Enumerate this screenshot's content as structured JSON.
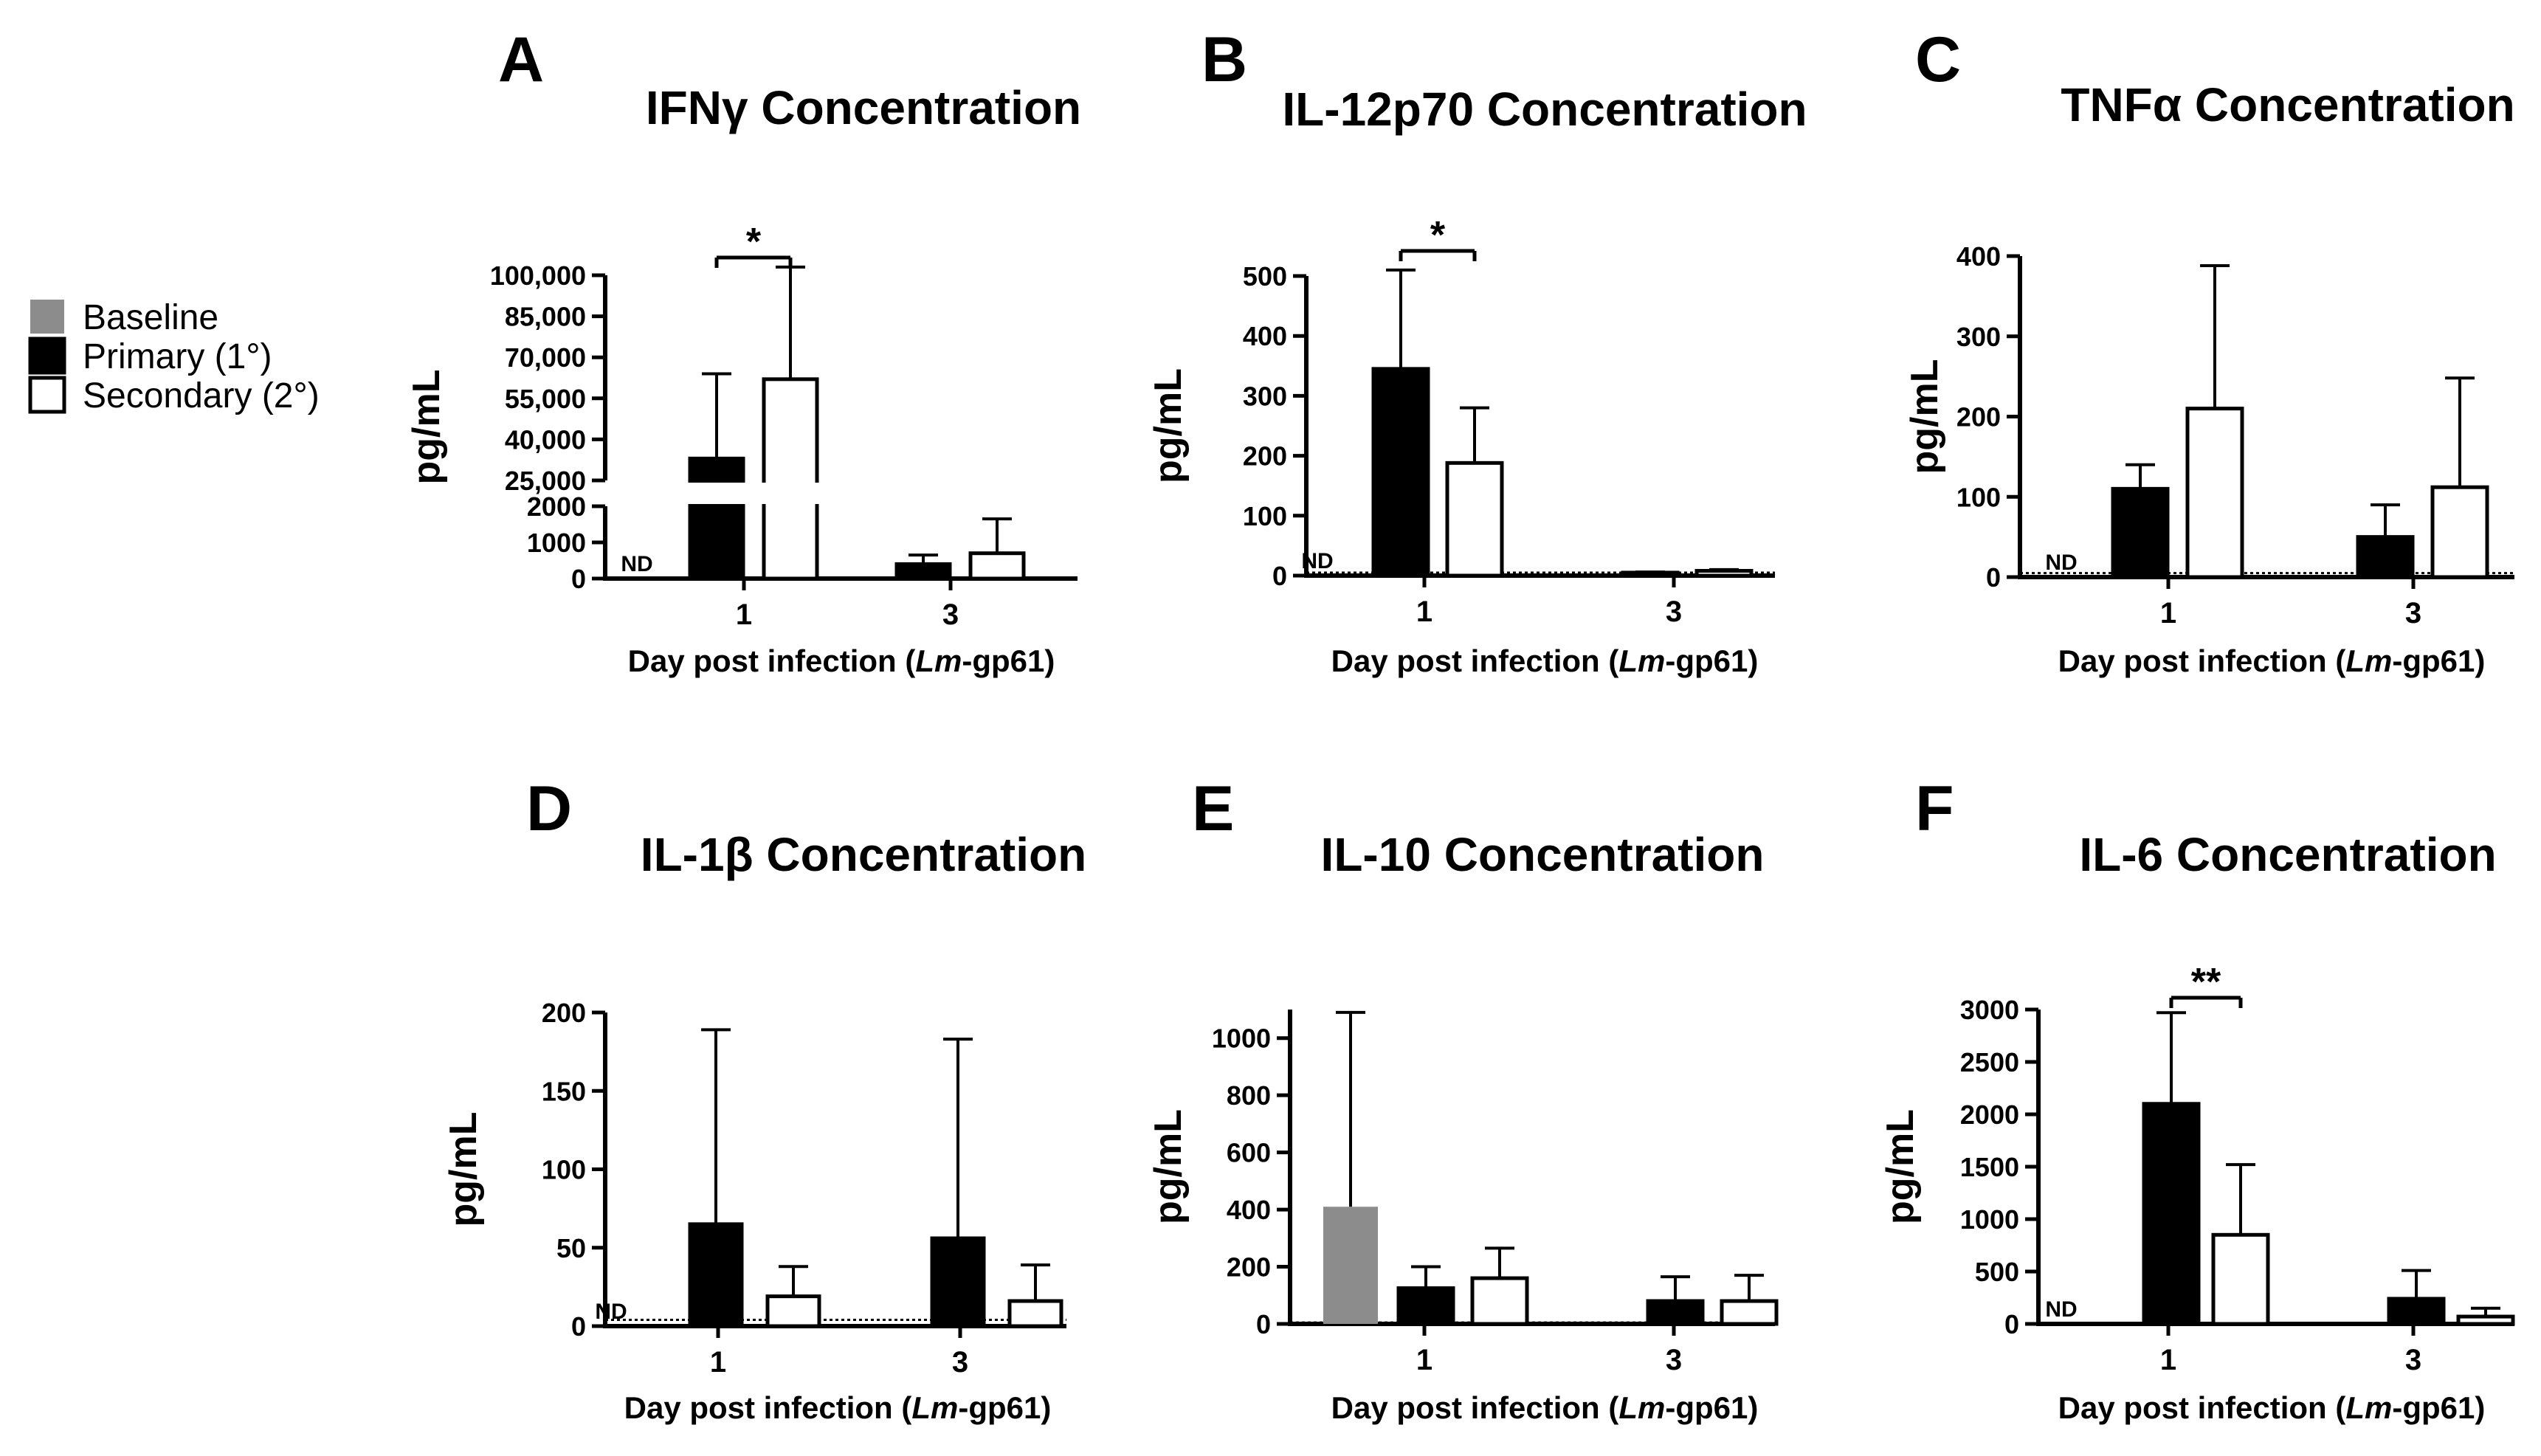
{
  "legend": {
    "items": [
      {
        "label": "Baseline",
        "color": "#8c8c8c"
      },
      {
        "label": "Primary (1°)",
        "color": "#000000"
      },
      {
        "label": "Secondary (2°)",
        "color": "#ffffff"
      }
    ]
  },
  "common": {
    "ylabel": "pg/mL",
    "xlabel_prefix": "Day post infection (",
    "xlabel_italic": "Lm",
    "xlabel_suffix": "-gp61)",
    "nd_label": "ND"
  },
  "chart_data": [
    {
      "panel": "A",
      "type": "bar",
      "title": "IFNγ Concentration",
      "ylabel": "pg/mL",
      "xlabel": "Day post infection (Lm-gp61)",
      "categories": [
        "1",
        "3"
      ],
      "axis_break": true,
      "lower_range": [
        0,
        2000
      ],
      "upper_range": [
        25000,
        100000
      ],
      "yticks_lower": [
        {
          "v": 0,
          "label": "0"
        },
        {
          "v": 1000,
          "label": "1000"
        },
        {
          "v": 2000,
          "label": "2000"
        }
      ],
      "yticks_upper": [
        {
          "v": 25000,
          "label": "25,000"
        },
        {
          "v": 40000,
          "label": "40,000"
        },
        {
          "v": 55000,
          "label": "55,000"
        },
        {
          "v": 70000,
          "label": "70,000"
        },
        {
          "v": 85000,
          "label": "85,000"
        },
        {
          "v": 100000,
          "label": "100,000"
        }
      ],
      "series": [
        {
          "name": "Baseline",
          "values": [
            null,
            null
          ],
          "errors": [
            null,
            null
          ],
          "nd": [
            true,
            false
          ]
        },
        {
          "name": "Primary (1°)",
          "values": [
            33000,
            400
          ],
          "errors": [
            64000,
            650
          ]
        },
        {
          "name": "Secondary (2°)",
          "values": [
            62000,
            700
          ],
          "errors": [
            103000,
            1650
          ]
        }
      ],
      "significance": [
        {
          "category": "1",
          "from": 1,
          "to": 2,
          "label": "*"
        }
      ]
    },
    {
      "panel": "B",
      "type": "bar",
      "title": "IL-12p70 Concentration",
      "ylabel": "pg/mL",
      "xlabel": "Day post infection (Lm-gp61)",
      "categories": [
        "1",
        "3"
      ],
      "ylim": [
        0,
        500
      ],
      "yticks": [
        0,
        100,
        200,
        300,
        400,
        500
      ],
      "baseline_dotted": 5,
      "series": [
        {
          "name": "Baseline",
          "values": [
            null,
            null
          ],
          "errors": [
            null,
            null
          ],
          "nd": [
            true,
            false
          ]
        },
        {
          "name": "Primary (1°)",
          "values": [
            345,
            5
          ],
          "errors": [
            510,
            6
          ]
        },
        {
          "name": "Secondary (2°)",
          "values": [
            188,
            8
          ],
          "errors": [
            280,
            10
          ]
        }
      ],
      "significance": [
        {
          "category": "1",
          "from": 1,
          "to": 2,
          "label": "*"
        }
      ]
    },
    {
      "panel": "C",
      "type": "bar",
      "title": "TNFα Concentration",
      "ylabel": "pg/mL",
      "xlabel": "Day post infection (Lm-gp61)",
      "categories": [
        "1",
        "3"
      ],
      "ylim": [
        0,
        400
      ],
      "yticks": [
        0,
        100,
        200,
        300,
        400
      ],
      "baseline_dotted": 5,
      "series": [
        {
          "name": "Baseline",
          "values": [
            null,
            null
          ],
          "errors": [
            null,
            null
          ],
          "nd": [
            true,
            false
          ]
        },
        {
          "name": "Primary (1°)",
          "values": [
            110,
            50
          ],
          "errors": [
            140,
            90
          ]
        },
        {
          "name": "Secondary (2°)",
          "values": [
            210,
            112
          ],
          "errors": [
            388,
            248
          ]
        }
      ],
      "significance": []
    },
    {
      "panel": "D",
      "type": "bar",
      "title": "IL-1β Concentration",
      "ylabel": "pg/mL",
      "xlabel": "Day post infection (Lm-gp61)",
      "categories": [
        "1",
        "3"
      ],
      "ylim": [
        0,
        200
      ],
      "yticks": [
        0,
        50,
        100,
        150,
        200
      ],
      "baseline_dotted": 4,
      "series": [
        {
          "name": "Baseline",
          "values": [
            null,
            null
          ],
          "errors": [
            null,
            null
          ],
          "nd": [
            true,
            false
          ]
        },
        {
          "name": "Primary (1°)",
          "values": [
            65,
            56
          ],
          "errors": [
            189,
            183
          ]
        },
        {
          "name": "Secondary (2°)",
          "values": [
            19,
            16
          ],
          "errors": [
            38,
            39
          ]
        }
      ],
      "significance": []
    },
    {
      "panel": "E",
      "type": "bar",
      "title": "IL-10 Concentration",
      "ylabel": "pg/mL",
      "xlabel": "Day post infection (Lm-gp61)",
      "categories": [
        "1",
        "3"
      ],
      "ylim": [
        0,
        1100
      ],
      "yticks": [
        0,
        200,
        400,
        600,
        800,
        1000
      ],
      "baseline_dotted": 5,
      "series": [
        {
          "name": "Baseline",
          "values": [
            410,
            null
          ],
          "errors": [
            1090,
            null
          ]
        },
        {
          "name": "Primary (1°)",
          "values": [
            125,
            80
          ],
          "errors": [
            200,
            165
          ]
        },
        {
          "name": "Secondary (2°)",
          "values": [
            160,
            80
          ],
          "errors": [
            265,
            170
          ]
        }
      ],
      "significance": []
    },
    {
      "panel": "F",
      "type": "bar",
      "title": "IL-6 Concentration",
      "ylabel": "pg/mL",
      "xlabel": "Day post infection (Lm-gp61)",
      "categories": [
        "1",
        "3"
      ],
      "ylim": [
        0,
        3000
      ],
      "yticks": [
        0,
        500,
        1000,
        1500,
        2000,
        2500,
        3000
      ],
      "baseline_dotted": 10,
      "series": [
        {
          "name": "Baseline",
          "values": [
            null,
            null
          ],
          "errors": [
            null,
            null
          ],
          "nd": [
            true,
            false
          ]
        },
        {
          "name": "Primary (1°)",
          "values": [
            2100,
            240
          ],
          "errors": [
            2970,
            510
          ]
        },
        {
          "name": "Secondary (2°)",
          "values": [
            850,
            70
          ],
          "errors": [
            1520,
            150
          ]
        }
      ],
      "significance": [
        {
          "category": "1",
          "from": 1,
          "to": 2,
          "label": "**"
        }
      ]
    }
  ]
}
